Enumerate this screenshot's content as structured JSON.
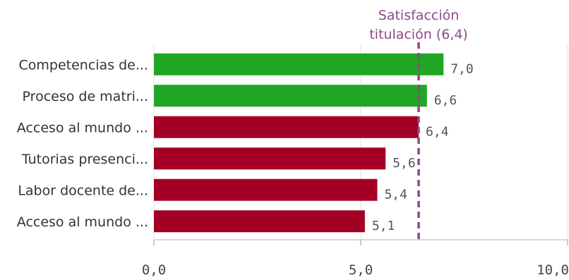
{
  "chart_data": {
    "type": "bar",
    "orientation": "horizontal",
    "categories": [
      "Competencias de...",
      "Proceso de matri...",
      "Acceso al mundo ...",
      "Tutorias presenci...",
      "Labor docente de...",
      "Acceso al mundo ..."
    ],
    "values": [
      7.0,
      6.6,
      6.4,
      5.6,
      5.4,
      5.1
    ],
    "value_labels": [
      "7,0",
      "6,6",
      "6,4",
      "5,6",
      "5,4",
      "5,1"
    ],
    "bar_colors": [
      "#21a524",
      "#21a524",
      "#a40026",
      "#a40026",
      "#a40026",
      "#a40026"
    ],
    "xlim": [
      0,
      10
    ],
    "x_ticks": [
      0,
      5,
      10
    ],
    "x_tick_labels": [
      "0,0",
      "5,0",
      "10,0"
    ],
    "grid": true,
    "reference_line": {
      "value": 6.4,
      "label_lines": [
        "Satisfacción",
        "titulación (6,4)"
      ],
      "color": "#8c4a86",
      "style": "dashed"
    },
    "title": "",
    "xlabel": "",
    "ylabel": ""
  }
}
